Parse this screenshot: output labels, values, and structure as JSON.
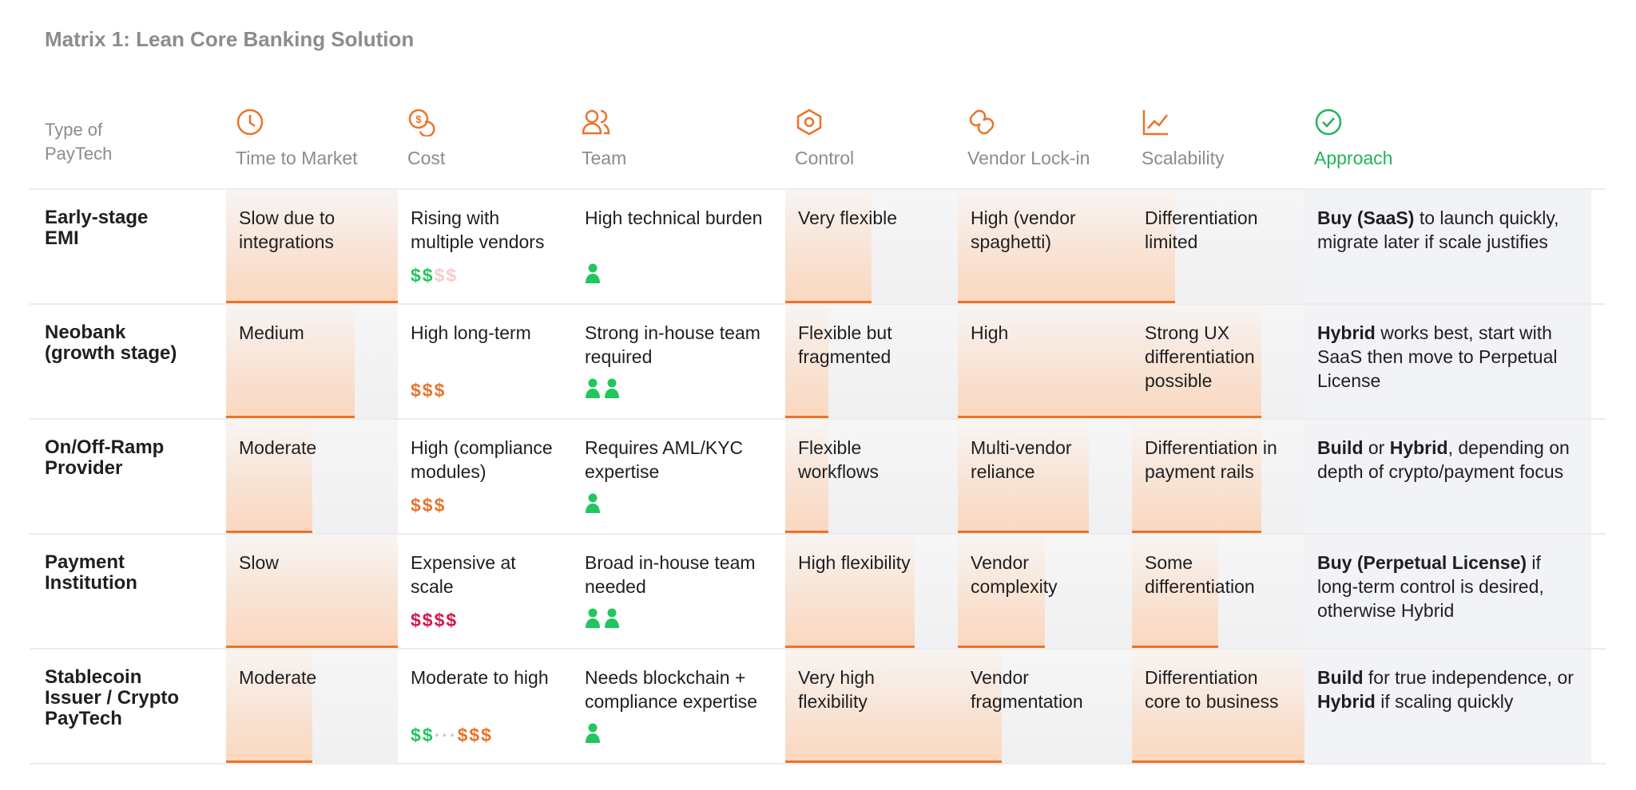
{
  "title": "Matrix 1: Lean Core Banking Solution",
  "header": {
    "row_label": [
      "Type of",
      "PayTech"
    ],
    "columns": [
      "Time to Market",
      "Cost",
      "Team",
      "Control",
      "Vendor Lock-in",
      "Scalability",
      "Approach"
    ]
  },
  "rows": [
    {
      "name": [
        "Early-stage",
        "EMI"
      ],
      "time": "Slow due to integrations",
      "cost": "Rising with multiple vendors",
      "cost_rating": [
        {
          "text": "$$",
          "color": "#22c55e"
        },
        {
          "text": "$$",
          "color": "#f8cccc"
        }
      ],
      "team": "High technical burden",
      "team_size": 1,
      "control": "Very flexible",
      "vendor": "High (vendor spaghetti)",
      "scalability": "Differentiation limited",
      "approach": [
        {
          "text": "Buy (SaaS)",
          "bold": true
        },
        {
          "text": " to launch quickly, migrate later if scale justifies",
          "bold": false
        }
      ]
    },
    {
      "name": [
        "Neobank",
        "(growth stage)"
      ],
      "time": "Medium",
      "cost": "High long-term",
      "cost_rating": [
        {
          "text": "$$$",
          "color": "#e8742a"
        }
      ],
      "team": "Strong in-house team required",
      "team_size": 2,
      "control": "Flexible but fragmented",
      "vendor": "High",
      "scalability": "Strong UX differentiation possible",
      "approach": [
        {
          "text": "Hybrid",
          "bold": true
        },
        {
          "text": " works best, start with SaaS then move to Perpetual License",
          "bold": false
        }
      ]
    },
    {
      "name": [
        "On/Off-Ramp",
        "Provider"
      ],
      "time": "Moderate",
      "cost": "High (compliance modules)",
      "cost_rating": [
        {
          "text": "$$$",
          "color": "#e8742a"
        }
      ],
      "team": "Requires AML/KYC expertise",
      "team_size": 1,
      "control": "Flexible workflows",
      "vendor": "Multi-vendor reliance",
      "scalability": "Differentiation in payment rails",
      "approach": [
        {
          "text": "Build",
          "bold": true
        },
        {
          "text": " or ",
          "bold": false
        },
        {
          "text": "Hybrid",
          "bold": true
        },
        {
          "text": ", depending on depth of crypto/payment focus",
          "bold": false
        }
      ]
    },
    {
      "name": [
        "Payment",
        "Institution"
      ],
      "time": "Slow",
      "cost": "Expensive at scale",
      "cost_rating": [
        {
          "text": "$$$$",
          "color": "#d6164a"
        }
      ],
      "team": "Broad in-house team needed",
      "team_size": 2,
      "control": "High flexibility",
      "vendor": "Vendor complexity",
      "scalability": "Some differentiation",
      "approach": [
        {
          "text": "Buy (Perpetual License)",
          "bold": true
        },
        {
          "text": " if long-term control is desired, otherwise Hybrid",
          "bold": false
        }
      ]
    },
    {
      "name": [
        "Stablecoin",
        "Issuer / Crypto",
        "PayTech"
      ],
      "time": "Moderate",
      "cost": "Moderate to high",
      "cost_rating": [
        {
          "text": "$$",
          "color": "#22c55e"
        },
        {
          "text": "···",
          "color": "#c8c8c8"
        },
        {
          "text": "$$$",
          "color": "#e8742a"
        }
      ],
      "team": "Needs blockchain + compliance expertise",
      "team_size": 1,
      "control": "Very high flexibility",
      "vendor": "Vendor fragmentation",
      "scalability": "Differentiation core to business",
      "approach": [
        {
          "text": "Build",
          "bold": true
        },
        {
          "text": " for true independence, or ",
          "bold": false
        },
        {
          "text": "Hybrid",
          "bold": true
        },
        {
          "text": " if scaling quickly",
          "bold": false
        }
      ]
    }
  ]
}
